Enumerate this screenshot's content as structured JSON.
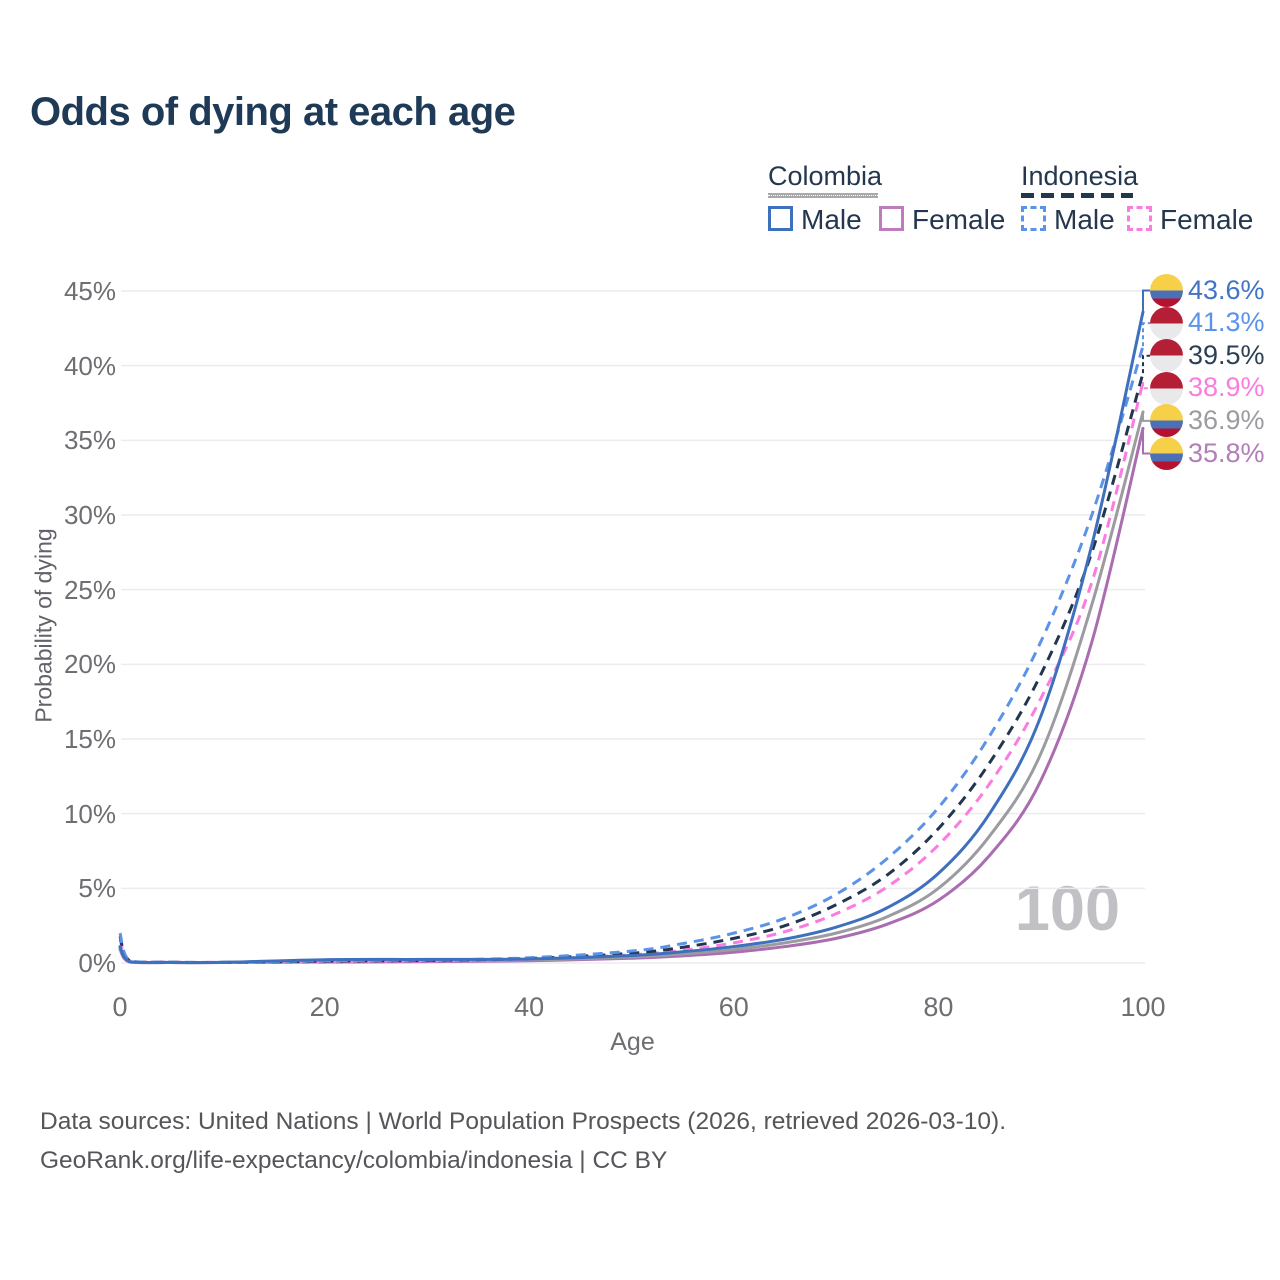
{
  "title": "Odds of dying at each age",
  "legend": {
    "colombia": {
      "label": "Colombia",
      "male": "Male",
      "female": "Female"
    },
    "indonesia": {
      "label": "Indonesia",
      "male": "Male",
      "female": "Female"
    }
  },
  "watermark": "100",
  "footer": {
    "line1": "Data sources: United Nations | World Population Prospects (2026, retrieved 2026-03-10).",
    "line2": "GeoRank.org/life-expectancy/colombia/indonesia | CC BY"
  },
  "chart_data": {
    "type": "line",
    "title": "Odds of dying at each age",
    "xlabel": "Age",
    "ylabel": "Probability of dying",
    "xlim": [
      0,
      100
    ],
    "ylim": [
      0,
      45
    ],
    "x_ticks": [
      0,
      20,
      40,
      60,
      80,
      100
    ],
    "y_tick_step": 5,
    "y_tick_suffix": "%",
    "grid": true,
    "legend_position": "top-right",
    "x": [
      0,
      1,
      5,
      10,
      20,
      30,
      40,
      50,
      55,
      60,
      65,
      70,
      75,
      80,
      85,
      90,
      95,
      100
    ],
    "series": [
      {
        "name": "Colombia Male",
        "country": "Colombia",
        "sex": "male",
        "line": "solid",
        "color": "#3e70bd",
        "label_color": "#4273c4",
        "flag": "colombia",
        "end_label": "43.6%",
        "values": [
          1.1,
          0.08,
          0.04,
          0.04,
          0.22,
          0.24,
          0.27,
          0.5,
          0.75,
          1.1,
          1.6,
          2.4,
          3.7,
          6.0,
          10.0,
          16.5,
          28.0,
          43.6
        ]
      },
      {
        "name": "Indonesia Male",
        "country": "Indonesia",
        "sex": "male",
        "line": "dashed",
        "color": "#5b93e8",
        "label_color": "#5b93e8",
        "flag": "indonesia",
        "end_label": "41.3%",
        "values": [
          2.0,
          0.15,
          0.06,
          0.05,
          0.15,
          0.2,
          0.35,
          0.8,
          1.3,
          2.0,
          3.0,
          4.6,
          7.0,
          10.4,
          15.2,
          21.5,
          30.0,
          41.3
        ]
      },
      {
        "name": "Indonesia Both sexes",
        "country": "Indonesia",
        "sex": "both",
        "line": "dashed",
        "color": "#22374e",
        "label_color": "#2b3f55",
        "flag": "indonesia",
        "end_label": "39.5%",
        "values": [
          1.8,
          0.13,
          0.05,
          0.04,
          0.12,
          0.17,
          0.3,
          0.65,
          1.05,
          1.65,
          2.5,
          3.9,
          5.9,
          9.0,
          13.4,
          19.3,
          27.5,
          39.5
        ]
      },
      {
        "name": "Indonesia Female",
        "country": "Indonesia",
        "sex": "female",
        "line": "dashed",
        "color": "#fb7ce0",
        "label_color": "#fb7ce0",
        "flag": "indonesia",
        "end_label": "38.9%",
        "values": [
          1.6,
          0.12,
          0.05,
          0.04,
          0.08,
          0.13,
          0.25,
          0.55,
          0.85,
          1.35,
          2.1,
          3.3,
          5.1,
          7.9,
          12.0,
          17.7,
          25.5,
          38.9
        ]
      },
      {
        "name": "Colombia Both sexes",
        "country": "Colombia",
        "sex": "both",
        "line": "solid",
        "color": "#9c9ca0",
        "label_color": "#9c9ca0",
        "flag": "colombia",
        "end_label": "36.9%",
        "values": [
          1.0,
          0.07,
          0.03,
          0.03,
          0.14,
          0.16,
          0.2,
          0.4,
          0.6,
          0.9,
          1.35,
          2.0,
          3.1,
          5.0,
          8.5,
          14.0,
          24.0,
          36.9
        ]
      },
      {
        "name": "Colombia Female",
        "country": "Colombia",
        "sex": "female",
        "line": "solid",
        "color": "#aa6db0",
        "label_color": "#b27eb8",
        "flag": "colombia",
        "end_label": "35.8%",
        "values": [
          0.9,
          0.06,
          0.03,
          0.03,
          0.06,
          0.09,
          0.15,
          0.32,
          0.48,
          0.72,
          1.1,
          1.65,
          2.6,
          4.2,
          7.2,
          12.2,
          21.5,
          35.8
        ]
      }
    ]
  }
}
